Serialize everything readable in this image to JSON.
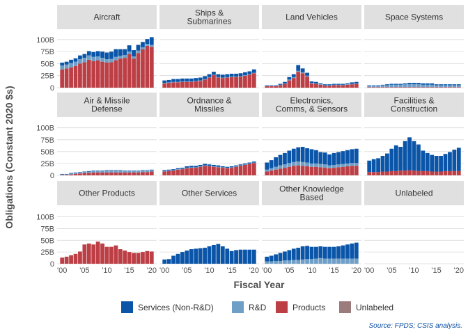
{
  "chart_data": {
    "type": "bar",
    "stacked": true,
    "ylabel": "Obligations (Constant 2020 $s)",
    "xlabel": "Fiscal Year",
    "caption": "Source: FPDS; CSIS analysis.",
    "x": [
      2000,
      2001,
      2002,
      2003,
      2004,
      2005,
      2006,
      2007,
      2008,
      2009,
      2010,
      2011,
      2012,
      2013,
      2014,
      2015,
      2016,
      2017,
      2018,
      2019,
      2020
    ],
    "x_ticks": [
      2000,
      2005,
      2010,
      2015,
      2020
    ],
    "x_tick_labels": [
      "'00",
      "'05",
      "'10",
      "'15",
      "'20"
    ],
    "ylim": [
      0,
      120
    ],
    "y_ticks": [
      0,
      25,
      50,
      75,
      100
    ],
    "y_tick_labels": [
      "0",
      "25B",
      "50B",
      "75B",
      "100B"
    ],
    "grid": true,
    "legend_position": "bottom",
    "colors": {
      "services": "#0b55a8",
      "rd": "#6f9fc7",
      "products": "#bd3f46",
      "unlabeled": "#9b7b7b",
      "strip_bg": "#e0e0e0",
      "grid": "#d9d9d9"
    },
    "series": [
      {
        "key": "services",
        "name": "Services (Non-R&D)"
      },
      {
        "key": "rd",
        "name": "R&D"
      },
      {
        "key": "products",
        "name": "Products"
      },
      {
        "key": "unlabeled",
        "name": "Unlabeled"
      }
    ],
    "panels": [
      {
        "title": [
          "Aircraft"
        ],
        "products": [
          38,
          40,
          42,
          45,
          50,
          53,
          58,
          55,
          57,
          54,
          52,
          53,
          57,
          60,
          62,
          70,
          60,
          72,
          80,
          87,
          85
        ],
        "rd": [
          8,
          8,
          9,
          9,
          9,
          9,
          9,
          9,
          8,
          8,
          7,
          7,
          7,
          6,
          6,
          5,
          5,
          5,
          4,
          4,
          4
        ],
        "services": [
          6,
          6,
          7,
          7,
          8,
          8,
          9,
          10,
          11,
          13,
          14,
          15,
          16,
          14,
          12,
          13,
          13,
          12,
          11,
          10,
          16
        ],
        "unlabeled": [
          0,
          0,
          0,
          0,
          0,
          0,
          0,
          0,
          0,
          0,
          0,
          0,
          0,
          0,
          0,
          0,
          0,
          0,
          0,
          0,
          0
        ]
      },
      {
        "title": [
          "Ships &",
          "Submarines"
        ],
        "products": [
          9,
          10,
          11,
          11,
          12,
          12,
          12,
          13,
          14,
          17,
          21,
          26,
          21,
          20,
          21,
          22,
          22,
          23,
          25,
          27,
          30
        ],
        "rd": [
          1,
          1,
          1,
          1,
          1,
          1,
          1,
          1,
          1,
          1,
          1,
          1,
          1,
          1,
          1,
          1,
          1,
          1,
          1,
          1,
          1
        ],
        "services": [
          5,
          5,
          6,
          6,
          6,
          6,
          6,
          6,
          6,
          6,
          6,
          6,
          6,
          6,
          6,
          6,
          6,
          6,
          6,
          6,
          7
        ],
        "unlabeled": [
          0,
          0,
          0,
          0,
          0,
          0,
          0,
          0,
          0,
          0,
          0,
          0,
          0,
          0,
          0,
          0,
          0,
          0,
          0,
          0,
          0
        ]
      },
      {
        "title": [
          "Land Vehicles"
        ],
        "products": [
          3,
          3,
          3,
          5,
          8,
          15,
          20,
          33,
          30,
          23,
          9,
          8,
          6,
          4,
          4,
          5,
          5,
          5,
          6,
          7,
          8
        ],
        "rd": [
          1,
          1,
          1,
          1,
          1,
          2,
          2,
          2,
          2,
          2,
          1,
          1,
          1,
          1,
          1,
          1,
          1,
          1,
          1,
          1,
          1
        ],
        "services": [
          1,
          1,
          1,
          2,
          3,
          5,
          6,
          12,
          8,
          6,
          3,
          3,
          2,
          2,
          2,
          2,
          2,
          2,
          2,
          3,
          3
        ],
        "unlabeled": [
          0,
          0,
          0,
          0,
          0,
          0,
          0,
          0,
          0,
          0,
          0,
          0,
          0,
          0,
          0,
          0,
          0,
          0,
          0,
          0,
          0
        ]
      },
      {
        "title": [
          "Space Systems"
        ],
        "products": [
          1,
          1,
          1,
          1,
          1,
          1,
          1,
          1,
          1,
          1,
          1,
          1,
          1,
          1,
          1,
          1,
          1,
          1,
          1,
          1,
          1
        ],
        "rd": [
          3,
          3,
          3,
          4,
          4,
          5,
          5,
          5,
          6,
          6,
          6,
          6,
          5,
          5,
          5,
          4,
          4,
          4,
          4,
          4,
          4
        ],
        "services": [
          1,
          1,
          1,
          1,
          2,
          2,
          2,
          2,
          2,
          3,
          3,
          3,
          3,
          3,
          3,
          2,
          2,
          2,
          2,
          2,
          2
        ],
        "unlabeled": [
          0,
          0,
          0,
          0,
          0,
          0,
          0,
          0,
          0,
          0,
          0,
          0,
          0,
          0,
          0,
          0,
          0,
          0,
          0,
          0,
          0
        ]
      },
      {
        "title": [
          "Air & Missile",
          "Defense"
        ],
        "products": [
          1,
          1,
          2,
          3,
          4,
          5,
          5,
          6,
          6,
          6,
          6,
          6,
          6,
          6,
          6,
          6,
          6,
          6,
          7,
          7,
          8
        ],
        "rd": [
          1,
          1,
          2,
          2,
          2,
          2,
          3,
          3,
          3,
          3,
          4,
          4,
          4,
          4,
          3,
          3,
          3,
          3,
          3,
          3,
          3
        ],
        "services": [
          1,
          1,
          1,
          1,
          1,
          1,
          1,
          1,
          1,
          1,
          1,
          1,
          1,
          1,
          1,
          1,
          1,
          1,
          1,
          1,
          1
        ],
        "unlabeled": [
          0,
          0,
          0,
          0,
          0,
          0,
          0,
          0,
          0,
          0,
          0,
          0,
          0,
          0,
          0,
          0,
          0,
          0,
          0,
          0,
          0
        ]
      },
      {
        "title": [
          "Ordnance &",
          "Missiles"
        ],
        "products": [
          8,
          9,
          10,
          12,
          13,
          15,
          16,
          16,
          18,
          20,
          19,
          18,
          17,
          16,
          15,
          16,
          18,
          20,
          22,
          24,
          26
        ],
        "rd": [
          1,
          1,
          1,
          1,
          1,
          1,
          1,
          1,
          1,
          1,
          1,
          1,
          1,
          1,
          1,
          1,
          1,
          1,
          1,
          1,
          1
        ],
        "services": [
          2,
          2,
          2,
          2,
          2,
          3,
          3,
          3,
          3,
          3,
          3,
          3,
          3,
          2,
          2,
          2,
          2,
          2,
          2,
          2,
          2
        ],
        "unlabeled": [
          0,
          0,
          0,
          0,
          0,
          0,
          0,
          0,
          0,
          0,
          0,
          0,
          0,
          0,
          0,
          0,
          0,
          0,
          0,
          0,
          0
        ]
      },
      {
        "title": [
          "Electronics,",
          "Comms, & Sensors"
        ],
        "products": [
          8,
          10,
          12,
          14,
          16,
          18,
          20,
          21,
          20,
          19,
          18,
          18,
          17,
          16,
          15,
          16,
          17,
          18,
          19,
          20,
          20
        ],
        "rd": [
          4,
          5,
          6,
          7,
          7,
          8,
          8,
          8,
          8,
          8,
          7,
          7,
          7,
          7,
          6,
          6,
          6,
          6,
          6,
          6,
          6
        ],
        "services": [
          15,
          17,
          20,
          22,
          24,
          26,
          28,
          30,
          32,
          30,
          30,
          28,
          25,
          25,
          23,
          25,
          26,
          27,
          28,
          29,
          30
        ],
        "unlabeled": [
          0,
          0,
          0,
          0,
          0,
          0,
          0,
          0,
          0,
          0,
          0,
          0,
          0,
          0,
          0,
          0,
          0,
          0,
          0,
          0,
          0
        ]
      },
      {
        "title": [
          "Facilities &",
          "Construction"
        ],
        "products": [
          7,
          7,
          7,
          8,
          8,
          9,
          9,
          10,
          10,
          11,
          10,
          9,
          9,
          9,
          8,
          8,
          8,
          9,
          9,
          9,
          9
        ],
        "rd": [
          0,
          0,
          0,
          0,
          0,
          0,
          0,
          0,
          0,
          0,
          0,
          0,
          0,
          0,
          0,
          0,
          0,
          0,
          0,
          0,
          0
        ],
        "services": [
          24,
          27,
          29,
          33,
          38,
          47,
          54,
          50,
          62,
          69,
          62,
          56,
          43,
          38,
          35,
          33,
          33,
          36,
          40,
          45,
          49
        ],
        "unlabeled": [
          0,
          0,
          0,
          0,
          0,
          0,
          0,
          0,
          0,
          0,
          0,
          0,
          0,
          0,
          0,
          0,
          0,
          0,
          0,
          0,
          0
        ]
      },
      {
        "title": [
          "Other Products"
        ],
        "products": [
          13,
          15,
          18,
          21,
          26,
          41,
          43,
          41,
          47,
          43,
          36,
          36,
          39,
          31,
          28,
          25,
          23,
          23,
          25,
          27,
          26
        ],
        "rd": [
          0,
          0,
          0,
          0,
          0,
          0,
          0,
          0,
          0,
          0,
          0,
          0,
          0,
          0,
          0,
          0,
          0,
          0,
          0,
          0,
          0
        ],
        "services": [
          0,
          0,
          0,
          0,
          0,
          0,
          0,
          0,
          0,
          0,
          0,
          0,
          0,
          0,
          0,
          0,
          0,
          0,
          0,
          0,
          0
        ],
        "unlabeled": [
          0,
          0,
          0,
          0,
          0,
          0,
          0,
          0,
          0,
          0,
          0,
          0,
          0,
          0,
          0,
          0,
          0,
          0,
          0,
          0,
          0
        ]
      },
      {
        "title": [
          "Other Services"
        ],
        "products": [
          0,
          0,
          0,
          0,
          0,
          0,
          0,
          0,
          0,
          0,
          0,
          0,
          0,
          0,
          0,
          0,
          0,
          0,
          0,
          0,
          0
        ],
        "rd": [
          0,
          0,
          0,
          0,
          0,
          0,
          0,
          0,
          0,
          0,
          0,
          0,
          0,
          0,
          0,
          0,
          0,
          0,
          0,
          0,
          0
        ],
        "services": [
          9,
          10,
          17,
          21,
          25,
          28,
          31,
          32,
          33,
          34,
          37,
          40,
          42,
          37,
          32,
          27,
          29,
          30,
          30,
          30,
          30
        ],
        "unlabeled": [
          0,
          0,
          0,
          0,
          0,
          0,
          0,
          0,
          0,
          0,
          0,
          0,
          0,
          0,
          0,
          0,
          0,
          0,
          0,
          0,
          0
        ]
      },
      {
        "title": [
          "Other Knowledge",
          "Based"
        ],
        "products": [
          0,
          0,
          0,
          0,
          0,
          0,
          0,
          0,
          0,
          0,
          0,
          0,
          0,
          0,
          0,
          0,
          0,
          0,
          0,
          0,
          0
        ],
        "rd": [
          5,
          5,
          6,
          6,
          7,
          7,
          8,
          8,
          9,
          10,
          10,
          11,
          12,
          11,
          11,
          11,
          11,
          11,
          11,
          11,
          11
        ],
        "services": [
          10,
          12,
          14,
          17,
          19,
          22,
          24,
          26,
          28,
          28,
          26,
          25,
          25,
          25,
          25,
          25,
          26,
          28,
          30,
          32,
          34
        ],
        "unlabeled": [
          0,
          0,
          0,
          0,
          0,
          0,
          0,
          0,
          0,
          0,
          0,
          0,
          0,
          0,
          0,
          0,
          0,
          0,
          0,
          0,
          0
        ]
      },
      {
        "title": [
          "Unlabeled"
        ],
        "products": [
          0,
          0,
          0,
          0,
          0,
          0,
          0,
          0,
          0,
          0,
          0,
          0,
          0,
          0,
          0,
          0,
          0,
          0,
          0,
          0,
          0
        ],
        "rd": [
          0,
          0,
          0,
          0,
          0,
          0,
          0,
          0,
          0,
          0,
          0,
          0,
          0,
          0,
          0,
          0,
          0,
          0,
          0,
          0,
          0
        ],
        "services": [
          0,
          0,
          0,
          0,
          0,
          0,
          0,
          0,
          0,
          0,
          0,
          0,
          0,
          0,
          0,
          0,
          0,
          0,
          0,
          0,
          0
        ],
        "unlabeled": [
          0,
          0,
          0,
          0,
          0,
          0,
          0,
          0,
          0,
          0,
          0,
          0,
          0,
          0,
          0,
          0,
          0,
          0,
          0,
          0,
          0
        ]
      }
    ]
  }
}
